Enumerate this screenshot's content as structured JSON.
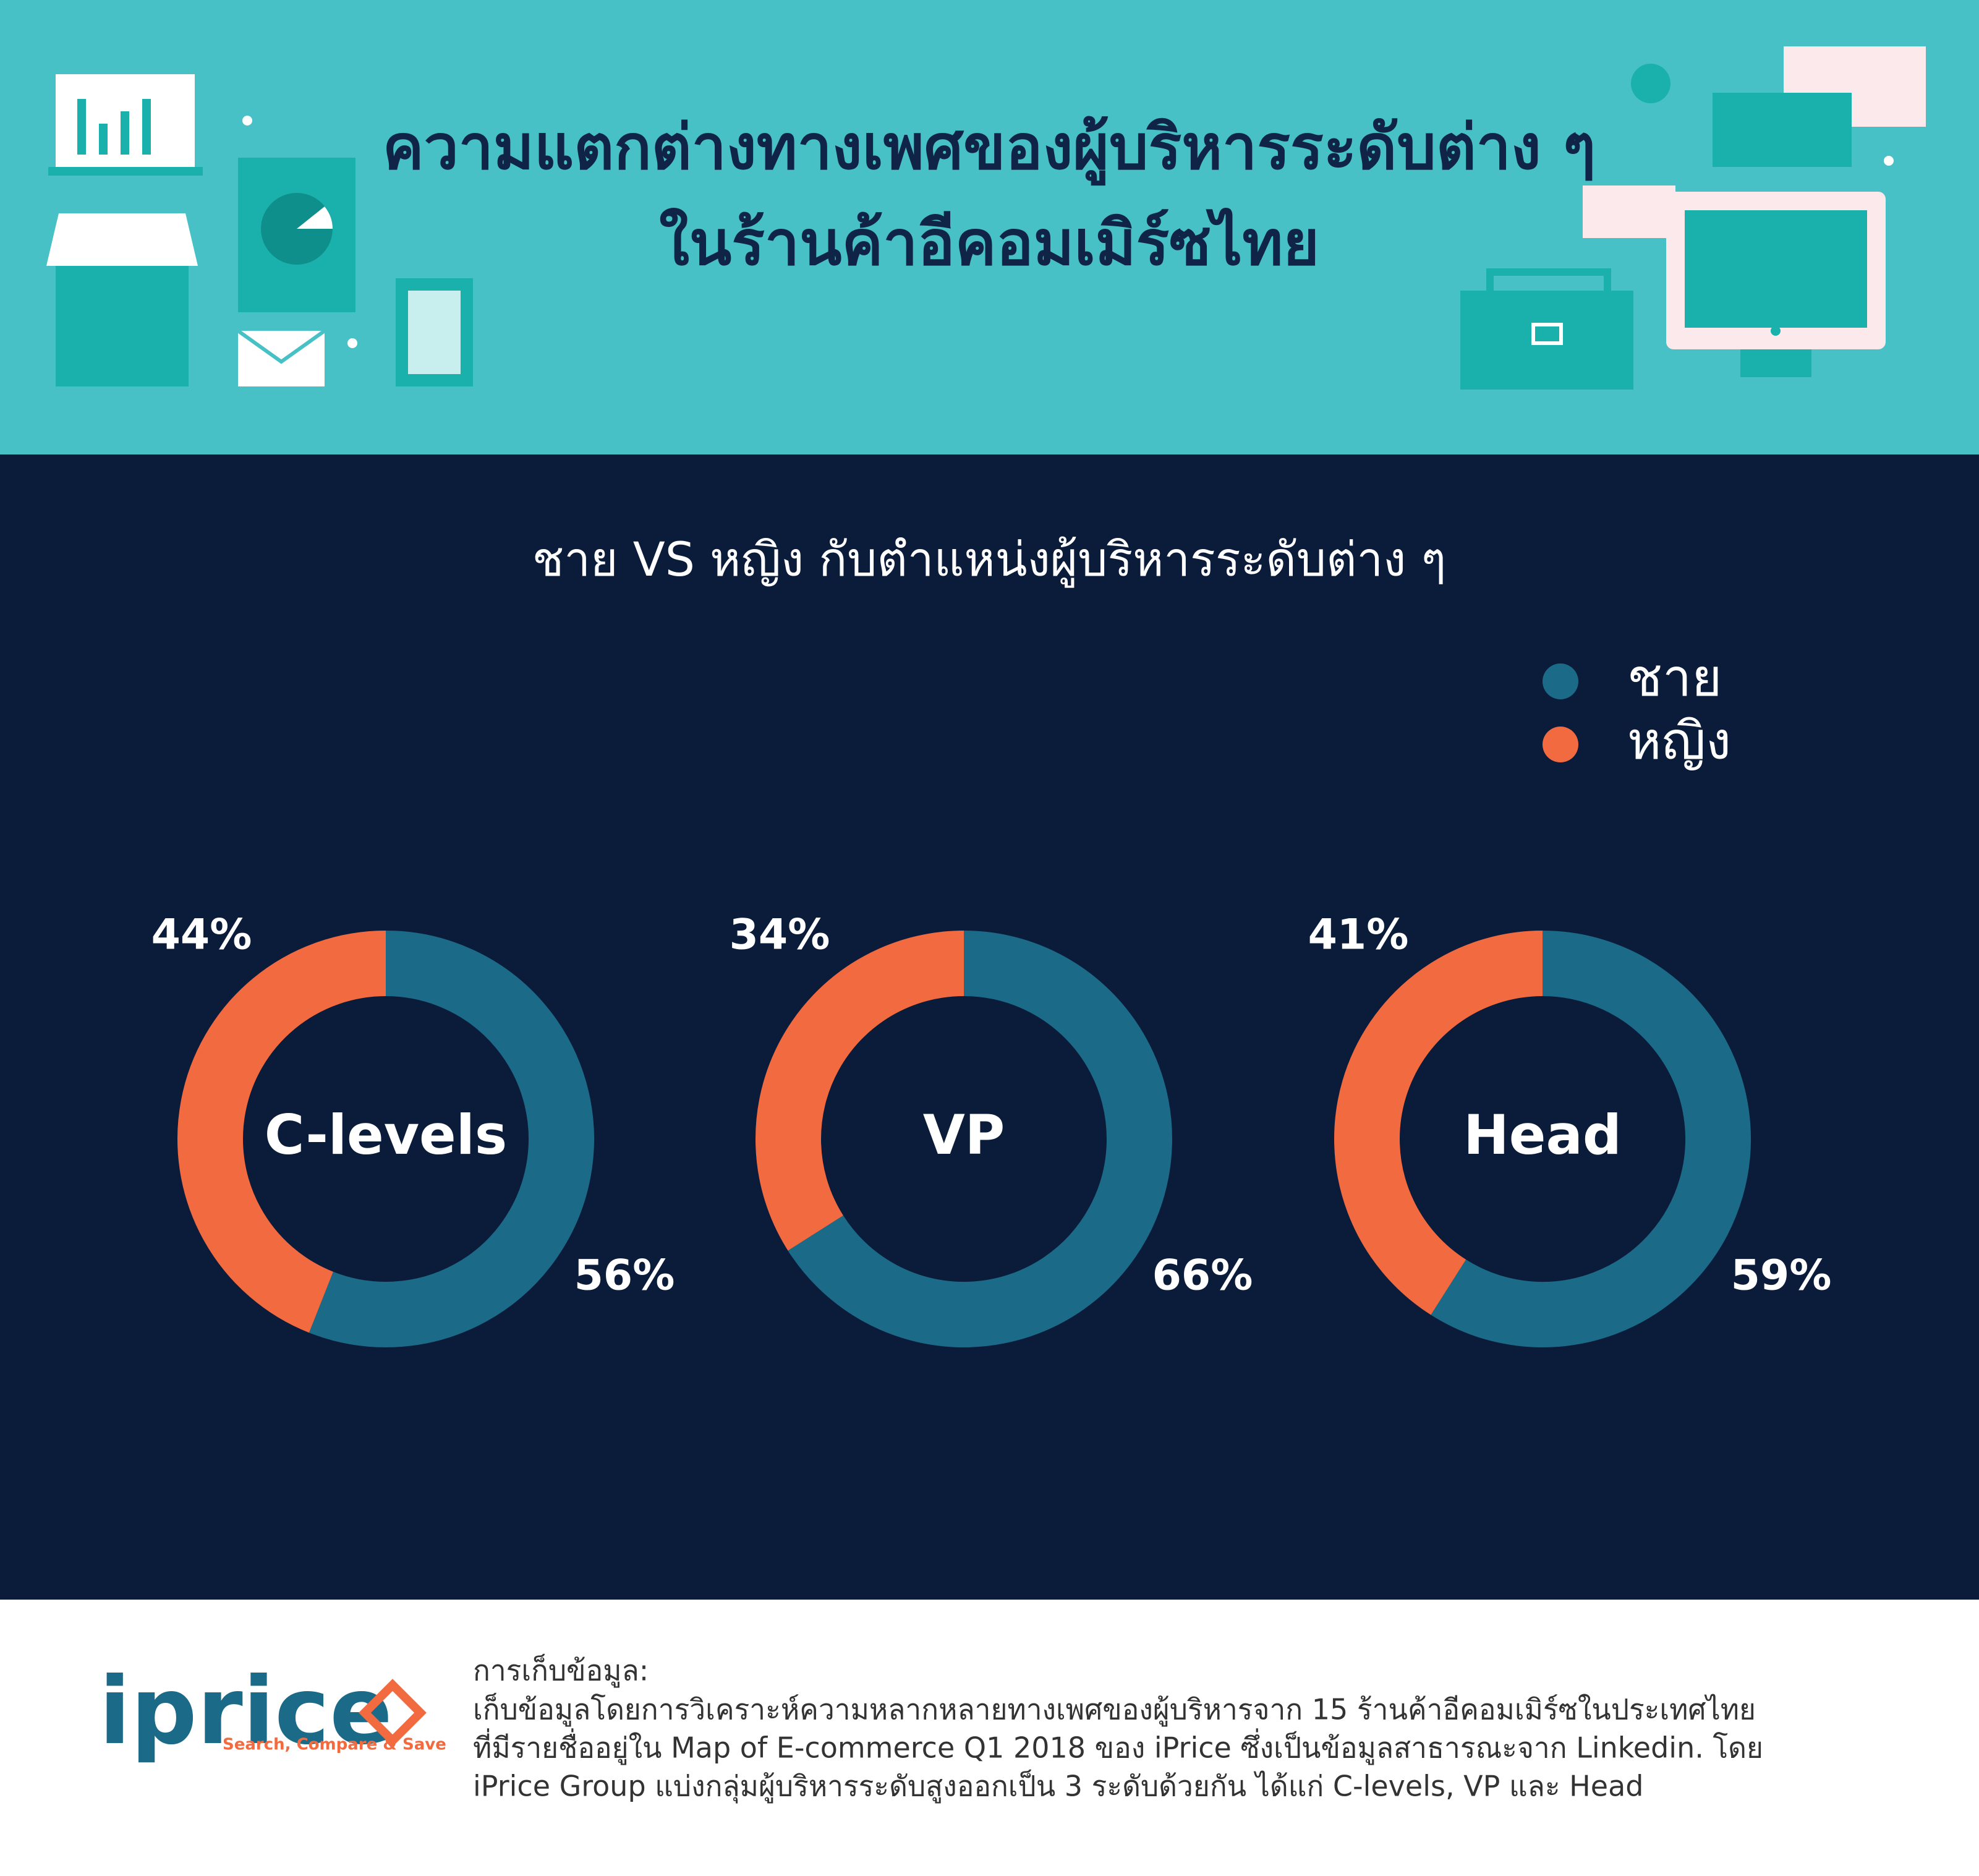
{
  "header": {
    "title": [
      "ความแตกต่างทางเพศของผู้บริหารระดับต่าง ๆ",
      "ในร้านค้าอีคอมเมิร์ซไทย"
    ]
  },
  "chart_data": {
    "type": "donut",
    "title": "ชาย VS หญิง กับตำแหน่งผู้บริหารระดับต่าง ๆ",
    "categories": [
      "C-levels",
      "VP",
      "Head"
    ],
    "series": [
      {
        "name": "ชาย",
        "color": "#1b6a87",
        "values": [
          56,
          66,
          59
        ],
        "value_labels": [
          "56%",
          "66%",
          "59%"
        ]
      },
      {
        "name": "หญิง",
        "color": "#f26a3f",
        "values": [
          44,
          34,
          41
        ],
        "value_labels": [
          "44%",
          "34%",
          "41%"
        ]
      }
    ],
    "legend": "top-right"
  },
  "footer": {
    "logo": "iprice",
    "tagline": "Search, Compare & Save",
    "note_title": "การเก็บข้อมูล:",
    "note_lines": [
      "เก็บข้อมูลโดยการวิเคราะห์ความหลากหลายทางเพศของผู้บริหารจาก 15 ร้านค้าอีคอมเมิร์ซในประเทศไทย",
      "ที่มีรายชื่ออยู่ใน Map of E-commerce Q1 2018 ของ iPrice ซึ่งเป็นข้อมูลสาธารณะจาก Linkedin. โดย",
      "iPrice Group แบ่งกลุ่มผู้บริหารระดับสูงออกเป็น 3 ระดับด้วยกัน ได้แก่ C-levels, VP และ Head"
    ]
  }
}
